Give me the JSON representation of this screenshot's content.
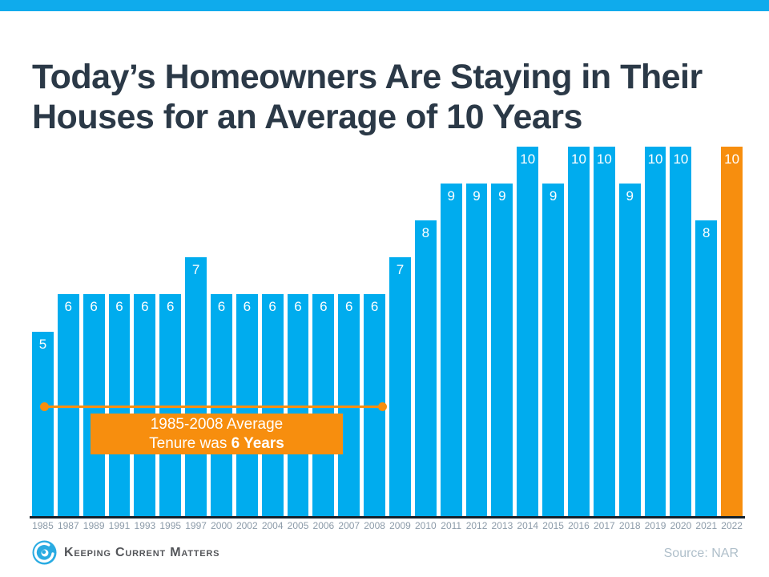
{
  "page": {
    "title": "Today’s Homeowners Are Staying in Their Houses for an Average of 10 Years"
  },
  "chart_data": {
    "type": "bar",
    "title": "Today’s Homeowners Are Staying in Their Houses for an Average of 10 Years",
    "categories": [
      "1985",
      "1987",
      "1989",
      "1991",
      "1993",
      "1995",
      "1997",
      "2000",
      "2002",
      "2004",
      "2005",
      "2006",
      "2007",
      "2008",
      "2009",
      "2010",
      "2011",
      "2012",
      "2013",
      "2014",
      "2015",
      "2016",
      "2017",
      "2018",
      "2019",
      "2020",
      "2021",
      "2022"
    ],
    "values": [
      5,
      6,
      6,
      6,
      6,
      6,
      7,
      6,
      6,
      6,
      6,
      6,
      6,
      6,
      7,
      8,
      9,
      9,
      9,
      10,
      9,
      10,
      10,
      9,
      10,
      10,
      8,
      10
    ],
    "ylim": [
      0,
      10
    ],
    "xlabel": "",
    "ylabel": "",
    "grid": false,
    "legend": false,
    "value_labels_position": "inside-top",
    "bar_color": "#00ACEE",
    "highlight_color": "#F78E0E",
    "highlight_index": 27,
    "annotation": {
      "line1": "1985-2008 Average",
      "line2_text": "Tenure was",
      "line2_bold": "6 Years",
      "span_years": "1985-2008"
    }
  },
  "footer": {
    "brand": "Keeping Current Matters",
    "source": "Source: NAR"
  },
  "colors": {
    "top_strip": "#0FABEC",
    "bar_blue": "#00ACEE",
    "accent_orange": "#F78E0E",
    "title_text": "#2B3947",
    "axis_text": "#8C9BA9",
    "baseline": "#15212C",
    "source_text": "#AFBFCA"
  }
}
